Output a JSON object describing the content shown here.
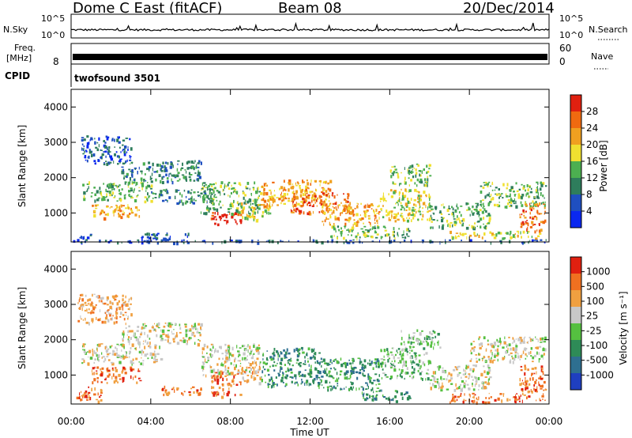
{
  "header": {
    "station": "Dome C East (fitACF)",
    "beam": "Beam 08",
    "date": "20/Dec/2014"
  },
  "sky_panel": {
    "label": "N.Sky",
    "right_label": "N.Search",
    "left_ticks": [
      "10^5",
      "10^0"
    ],
    "right_ticks": [
      "10^5",
      "10^0"
    ]
  },
  "freq_panel": {
    "label_line1": "Freq.",
    "label_line2": "[MHz]",
    "left_ticks": [
      "8"
    ],
    "right_label": "Nave",
    "right_ticks": [
      "60",
      "0"
    ]
  },
  "cpid": {
    "label": "CPID",
    "value": "twofsound 3501"
  },
  "colors": {
    "power": [
      "#0a28f0",
      "#1f4fc0",
      "#2e7d5c",
      "#4caf50",
      "#f0e030",
      "#f0a020",
      "#f06a10",
      "#e02010"
    ],
    "velocity": [
      "#1f3fc0",
      "#2e6f90",
      "#2e8b57",
      "#55c040",
      "#c8c8c8",
      "#f0a040",
      "#f07020",
      "#e02010"
    ]
  },
  "chart_data": [
    {
      "type": "heatmap",
      "name": "power",
      "ylabel": "Slant Range [km]",
      "xlabel": "",
      "x_ticks": [],
      "y_ticks": [
        "1000",
        "2000",
        "3000",
        "4000"
      ],
      "ylim": [
        180,
        4500
      ],
      "xlim": [
        0,
        24
      ],
      "colorbar": {
        "label": "Power [dB]",
        "ticks": [
          "28",
          "24",
          "20",
          "16",
          "12",
          "8",
          "4"
        ],
        "range": [
          0,
          32
        ]
      },
      "blobs": [
        {
          "t": [
            0.2,
            1.0
          ],
          "r": [
            250,
            420
          ],
          "level": 1
        },
        {
          "t": [
            1.0,
            3.5
          ],
          "r": [
            880,
            1250
          ],
          "level": 5
        },
        {
          "t": [
            0.5,
            4.0
          ],
          "r": [
            1350,
            1900
          ],
          "level": 3
        },
        {
          "t": [
            0.5,
            3.0
          ],
          "r": [
            2400,
            3200
          ],
          "level": 1
        },
        {
          "t": [
            2.5,
            6.5
          ],
          "r": [
            1900,
            2500
          ],
          "level": 2
        },
        {
          "t": [
            3.5,
            6.0
          ],
          "r": [
            250,
            450
          ],
          "level": 1
        },
        {
          "t": [
            4.0,
            7.0
          ],
          "r": [
            1300,
            1700
          ],
          "level": 2
        },
        {
          "t": [
            7.0,
            8.5
          ],
          "r": [
            700,
            1050
          ],
          "level": 7
        },
        {
          "t": [
            6.5,
            9.5
          ],
          "r": [
            1000,
            1900
          ],
          "level": 3
        },
        {
          "t": [
            8.5,
            10.0
          ],
          "r": [
            800,
            1300
          ],
          "level": 4
        },
        {
          "t": [
            9.5,
            13.0
          ],
          "r": [
            1200,
            1950
          ],
          "level": 5
        },
        {
          "t": [
            11.0,
            14.0
          ],
          "r": [
            1000,
            1600
          ],
          "level": 6
        },
        {
          "t": [
            12.5,
            15.5
          ],
          "r": [
            650,
            1300
          ],
          "level": 5
        },
        {
          "t": [
            13.0,
            17.0
          ],
          "r": [
            300,
            650
          ],
          "level": 3
        },
        {
          "t": [
            15.5,
            18.0
          ],
          "r": [
            800,
            1700
          ],
          "level": 4
        },
        {
          "t": [
            16.0,
            18.0
          ],
          "r": [
            1800,
            2400
          ],
          "level": 3
        },
        {
          "t": [
            18.0,
            21.0
          ],
          "r": [
            600,
            1300
          ],
          "level": 3
        },
        {
          "t": [
            19.0,
            23.5
          ],
          "r": [
            300,
            500
          ],
          "level": 4
        },
        {
          "t": [
            20.5,
            23.8
          ],
          "r": [
            1200,
            1900
          ],
          "level": 3
        },
        {
          "t": [
            22.5,
            23.8
          ],
          "r": [
            500,
            1300
          ],
          "level": 6
        },
        {
          "t": [
            0.0,
            24.0
          ],
          "r": [
            180,
            260
          ],
          "level": 1
        }
      ]
    },
    {
      "type": "heatmap",
      "name": "velocity",
      "ylabel": "Slant Range [km]",
      "xlabel": "Time UT",
      "x_ticks": [
        "00:00",
        "04:00",
        "08:00",
        "12:00",
        "16:00",
        "20:00",
        "00:00"
      ],
      "y_ticks": [
        "1000",
        "2000",
        "3000",
        "4000"
      ],
      "ylim": [
        180,
        4500
      ],
      "xlim": [
        0,
        24
      ],
      "colorbar": {
        "label": "Velocity [m s⁻¹]",
        "ticks": [
          "1000",
          "500",
          "100",
          "25",
          "-25",
          "-100",
          "-500",
          "-1000"
        ],
        "range": [
          -1200,
          1200
        ]
      },
      "blobs": [
        {
          "t": [
            0.2,
            1.5
          ],
          "r": [
            250,
            700
          ],
          "level": 6
        },
        {
          "t": [
            1.0,
            3.5
          ],
          "r": [
            800,
            1250
          ],
          "level": 6
        },
        {
          "t": [
            0.3,
            3.0
          ],
          "r": [
            2500,
            3300
          ],
          "level": 5
        },
        {
          "t": [
            0.5,
            4.5
          ],
          "r": [
            1350,
            1900
          ],
          "level": 4
        },
        {
          "t": [
            2.5,
            6.5
          ],
          "r": [
            1900,
            2500
          ],
          "level": 4
        },
        {
          "t": [
            4.5,
            6.5
          ],
          "r": [
            450,
            700
          ],
          "level": 6
        },
        {
          "t": [
            7.0,
            8.5
          ],
          "r": [
            400,
            1100
          ],
          "level": 6
        },
        {
          "t": [
            6.5,
            9.5
          ],
          "r": [
            1000,
            1900
          ],
          "level": 4
        },
        {
          "t": [
            8.5,
            9.5
          ],
          "r": [
            800,
            1300
          ],
          "level": 5
        },
        {
          "t": [
            9.5,
            12.5
          ],
          "r": [
            700,
            1800
          ],
          "level": 2
        },
        {
          "t": [
            12.5,
            15.5
          ],
          "r": [
            600,
            1500
          ],
          "level": 2
        },
        {
          "t": [
            14.5,
            17.0
          ],
          "r": [
            280,
            600
          ],
          "level": 2
        },
        {
          "t": [
            15.5,
            18.0
          ],
          "r": [
            900,
            1800
          ],
          "level": 3
        },
        {
          "t": [
            16.5,
            18.5
          ],
          "r": [
            1800,
            2300
          ],
          "level": 3
        },
        {
          "t": [
            18.0,
            21.0
          ],
          "r": [
            600,
            1300
          ],
          "level": 4
        },
        {
          "t": [
            19.0,
            23.8
          ],
          "r": [
            250,
            500
          ],
          "level": 6
        },
        {
          "t": [
            20.0,
            23.8
          ],
          "r": [
            1400,
            2100
          ],
          "level": 4
        },
        {
          "t": [
            22.5,
            23.8
          ],
          "r": [
            500,
            1300
          ],
          "level": 6
        }
      ]
    }
  ]
}
